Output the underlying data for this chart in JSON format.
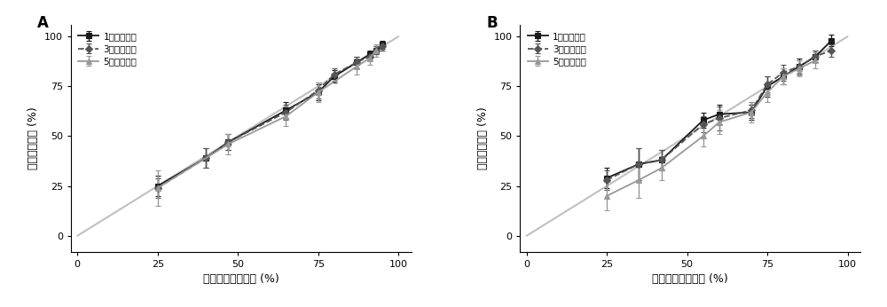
{
  "panel_A": {
    "title": "A",
    "xlabel": "模型预测生存概率 (%)",
    "ylabel": "观测生存概率 (%)",
    "series": [
      {
        "label": "1年生存概率",
        "color": "#1a1a1a",
        "linestyle": "-",
        "marker": "s",
        "markersize": 4,
        "x": [
          25,
          40,
          47,
          65,
          75,
          80,
          87,
          91,
          93,
          95
        ],
        "y": [
          25,
          39,
          47,
          63,
          72,
          80,
          87,
          91,
          93,
          96
        ],
        "yerr": [
          5,
          5,
          4,
          4,
          4,
          3,
          3,
          2,
          2,
          2
        ]
      },
      {
        "label": "3年生存概率",
        "color": "#555555",
        "linestyle": "--",
        "marker": "D",
        "markersize": 4,
        "x": [
          25,
          40,
          47,
          65,
          75,
          80,
          87,
          91,
          93,
          95
        ],
        "y": [
          24,
          39,
          47,
          62,
          73,
          81,
          87,
          90,
          93,
          95
        ],
        "yerr": [
          5,
          5,
          4,
          4,
          4,
          3,
          3,
          2,
          2,
          2
        ]
      },
      {
        "label": "5年生存概率",
        "color": "#999999",
        "linestyle": "-",
        "marker": "^",
        "markersize": 4,
        "x": [
          25,
          47,
          65,
          75,
          87,
          91,
          93
        ],
        "y": [
          24,
          46,
          60,
          72,
          85,
          89,
          93
        ],
        "yerr": [
          9,
          5,
          5,
          5,
          4,
          3,
          3
        ]
      }
    ]
  },
  "panel_B": {
    "title": "B",
    "xlabel": "模型预测生存概率 (%)",
    "ylabel": "观测生存概率 (%)",
    "series": [
      {
        "label": "1年生存概率",
        "color": "#1a1a1a",
        "linestyle": "-",
        "marker": "s",
        "markersize": 4,
        "x": [
          25,
          35,
          42,
          55,
          60,
          70,
          75,
          80,
          85,
          90,
          95
        ],
        "y": [
          29,
          36,
          38,
          58,
          61,
          62,
          75,
          80,
          85,
          90,
          98
        ],
        "yerr": [
          5,
          8,
          5,
          4,
          5,
          4,
          5,
          4,
          4,
          3,
          3
        ]
      },
      {
        "label": "3年生存概率",
        "color": "#555555",
        "linestyle": "--",
        "marker": "D",
        "markersize": 4,
        "x": [
          25,
          35,
          42,
          55,
          60,
          70,
          75,
          80,
          85,
          90,
          95
        ],
        "y": [
          28,
          36,
          38,
          56,
          59,
          63,
          76,
          82,
          85,
          90,
          93
        ],
        "yerr": [
          5,
          8,
          5,
          4,
          6,
          4,
          4,
          4,
          3,
          3,
          3
        ]
      },
      {
        "label": "5年生存概率",
        "color": "#999999",
        "linestyle": "-",
        "marker": "^",
        "markersize": 4,
        "x": [
          25,
          35,
          42,
          55,
          60,
          70,
          75,
          80,
          85,
          90
        ],
        "y": [
          20,
          28,
          34,
          50,
          57,
          62,
          72,
          80,
          84,
          88
        ],
        "yerr": [
          7,
          9,
          6,
          5,
          6,
          5,
          5,
          4,
          4,
          4
        ]
      }
    ]
  },
  "ref_color": "#c0c0c0",
  "tick_fontsize": 8,
  "label_fontsize": 9,
  "legend_fontsize": 7.5,
  "capsize": 2.5,
  "elinewidth": 1.0,
  "linewidth": 1.3
}
